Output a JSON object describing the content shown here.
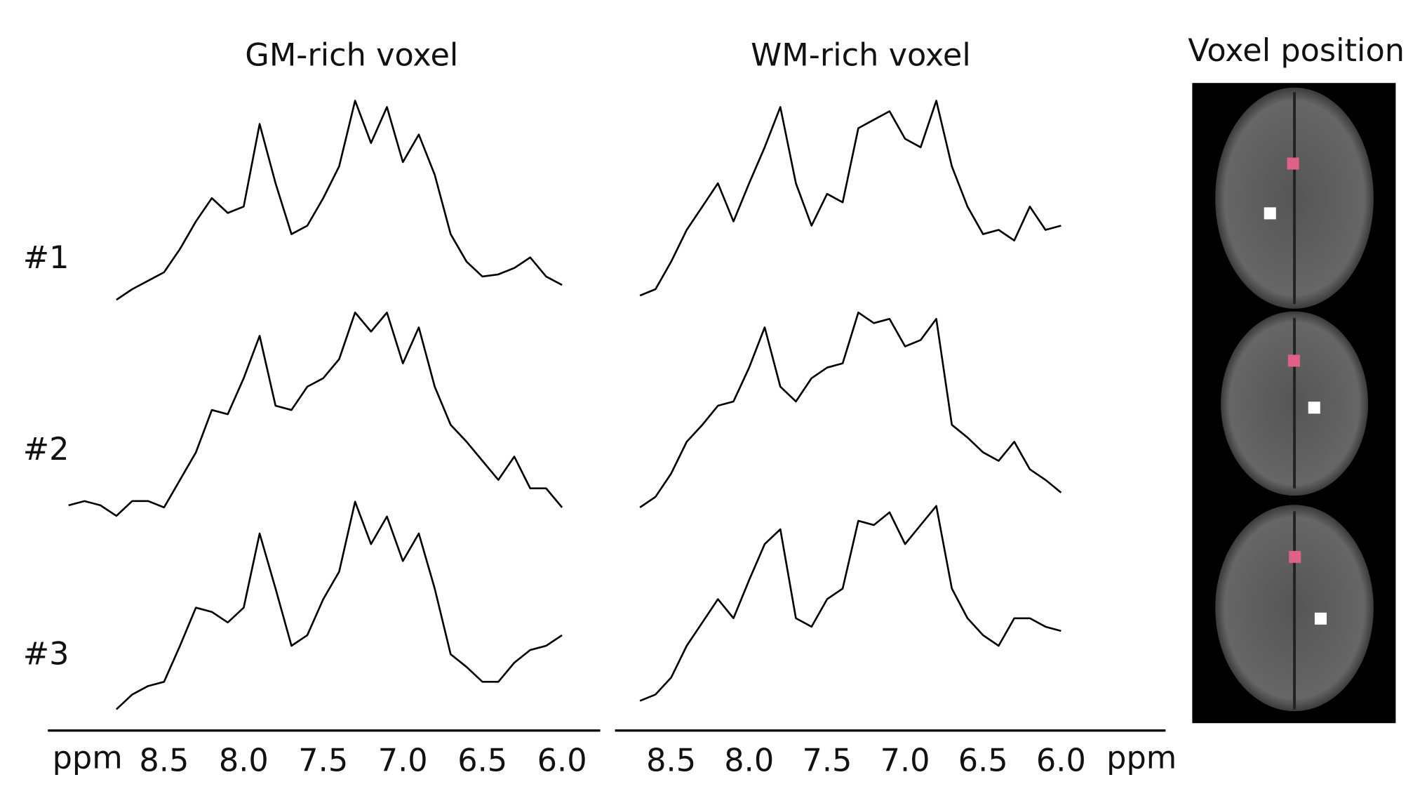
{
  "rows": [
    "#1",
    "#2",
    "#3"
  ],
  "voxel_panel": {
    "title": "Voxel position"
  },
  "chart_data": [
    {
      "type": "line",
      "title": "GM-rich voxel",
      "xlabel": "ppm",
      "color": "#000000",
      "x": [
        9.1,
        9.0,
        8.9,
        8.8,
        8.7,
        8.6,
        8.5,
        8.4,
        8.3,
        8.2,
        8.1,
        8.0,
        7.9,
        7.8,
        7.7,
        7.6,
        7.5,
        7.4,
        7.3,
        7.2,
        7.1,
        7.0,
        6.9,
        6.8,
        6.7,
        6.6,
        6.5,
        6.4,
        6.3,
        6.2,
        6.1,
        6.0
      ],
      "xlim": [
        9.23,
        5.76
      ],
      "xticks": [
        8.5,
        {
          "value": 8,
          "label": "8.0"
        },
        7.5,
        {
          "value": 7,
          "label": "7.0"
        },
        6.5,
        {
          "value": 6,
          "label": "6.0"
        }
      ],
      "ylim": [
        0,
        1
      ],
      "series": [
        {
          "values": [
            null,
            null,
            null,
            0.02,
            0.07,
            0.11,
            0.15,
            0.26,
            0.39,
            0.5,
            0.43,
            0.46,
            0.85,
            0.57,
            0.33,
            0.37,
            0.5,
            0.65,
            0.96,
            0.76,
            0.93,
            0.67,
            0.8,
            0.61,
            0.33,
            0.2,
            0.13,
            0.14,
            0.17,
            0.22,
            0.13,
            0.09
          ]
        },
        {
          "values": [
            0.05,
            0.07,
            0.05,
            0.0,
            0.07,
            0.07,
            0.04,
            0.17,
            0.3,
            0.5,
            0.48,
            0.65,
            0.85,
            0.52,
            0.5,
            0.61,
            0.65,
            0.74,
            0.96,
            0.87,
            0.96,
            0.72,
            0.89,
            0.61,
            0.43,
            0.35,
            0.26,
            0.17,
            0.28,
            0.13,
            0.13,
            0.04
          ]
        },
        {
          "values": [
            null,
            null,
            null,
            0.0,
            0.07,
            0.11,
            0.13,
            0.3,
            0.48,
            0.46,
            0.41,
            0.48,
            0.83,
            0.57,
            0.3,
            0.35,
            0.52,
            0.65,
            0.98,
            0.78,
            0.91,
            0.7,
            0.83,
            0.57,
            0.26,
            0.2,
            0.13,
            0.13,
            0.22,
            0.28,
            0.3,
            0.35
          ]
        }
      ]
    },
    {
      "type": "line",
      "title": "WM-rich voxel",
      "xlabel": "ppm",
      "color": "#000000",
      "x": [
        8.7,
        8.6,
        8.5,
        8.4,
        8.3,
        8.2,
        8.1,
        8.0,
        7.9,
        7.8,
        7.7,
        7.6,
        7.5,
        7.4,
        7.3,
        7.2,
        7.1,
        7.0,
        6.9,
        6.8,
        6.7,
        6.6,
        6.5,
        6.4,
        6.3,
        6.2,
        6.1,
        6.0
      ],
      "xlim": [
        8.86,
        5.33
      ],
      "xticks": [
        8.5,
        {
          "value": 8,
          "label": "8.0"
        },
        7.5,
        {
          "value": 7,
          "label": "7.0"
        },
        6.5,
        {
          "value": 6,
          "label": "6.0"
        }
      ],
      "ylim": [
        0,
        1
      ],
      "series": [
        {
          "values": [
            0.04,
            0.07,
            0.2,
            0.35,
            0.46,
            0.57,
            0.39,
            0.57,
            0.74,
            0.93,
            0.57,
            0.37,
            0.52,
            0.48,
            0.83,
            0.87,
            0.91,
            0.78,
            0.74,
            0.96,
            0.65,
            0.46,
            0.33,
            0.35,
            0.3,
            0.46,
            0.35,
            0.37
          ]
        },
        {
          "values": [
            0.04,
            0.09,
            0.2,
            0.35,
            0.43,
            0.52,
            0.54,
            0.7,
            0.89,
            0.61,
            0.54,
            0.65,
            0.7,
            0.72,
            0.96,
            0.91,
            0.93,
            0.8,
            0.83,
            0.93,
            0.43,
            0.37,
            0.3,
            0.26,
            0.35,
            0.22,
            0.17,
            0.11
          ]
        },
        {
          "values": [
            0.04,
            0.07,
            0.15,
            0.3,
            0.41,
            0.52,
            0.43,
            0.61,
            0.78,
            0.85,
            0.43,
            0.39,
            0.52,
            0.57,
            0.89,
            0.87,
            0.93,
            0.78,
            0.87,
            0.96,
            0.57,
            0.43,
            0.35,
            0.3,
            0.43,
            0.43,
            0.39,
            0.37
          ]
        }
      ]
    }
  ]
}
